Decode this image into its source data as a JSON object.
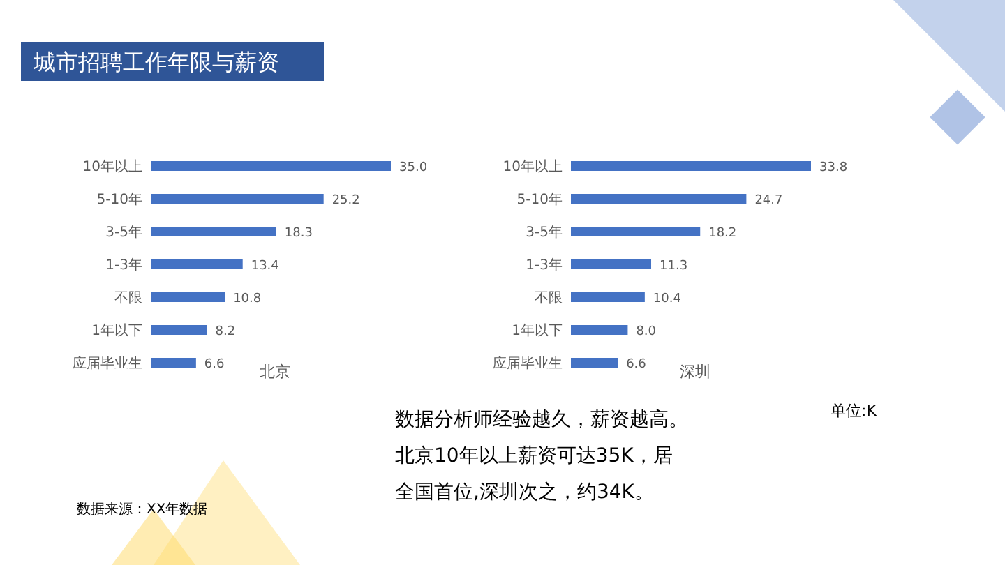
{
  "chart_data": [
    {
      "type": "other",
      "title": "城市招聘工作年限与薪资",
      "annotations": [
        "数据分析师经验越久，薪资越高。",
        "北京10年以上薪资可达35K，居",
        "全国首位,深圳次之，约34K。",
        "单位:K",
        "数据来源：XX年数据"
      ]
    },
    {
      "type": "bar",
      "orientation": "horizontal",
      "title": "北京",
      "categories": [
        "10年以上",
        "5-10年",
        "3-5年",
        "1-3年",
        "不限",
        "1年以下",
        "应届毕业生"
      ],
      "values": [
        35.0,
        25.2,
        18.3,
        13.4,
        10.8,
        8.2,
        6.6
      ],
      "value_labels": [
        "35.0",
        "25.2",
        "18.3",
        "13.4",
        "10.8",
        "8.2",
        "6.6"
      ],
      "color": "#4472c4"
    },
    {
      "type": "bar",
      "orientation": "horizontal",
      "title": "深圳",
      "categories": [
        "10年以上",
        "5-10年",
        "3-5年",
        "1-3年",
        "不限",
        "1年以下",
        "应届毕业生"
      ],
      "values": [
        33.8,
        24.7,
        18.2,
        11.3,
        10.4,
        8.0,
        6.6
      ],
      "value_labels": [
        "33.8",
        "24.7",
        "18.2",
        "11.3",
        "10.4",
        "8.0",
        "6.6"
      ],
      "color": "#4472c4"
    }
  ]
}
